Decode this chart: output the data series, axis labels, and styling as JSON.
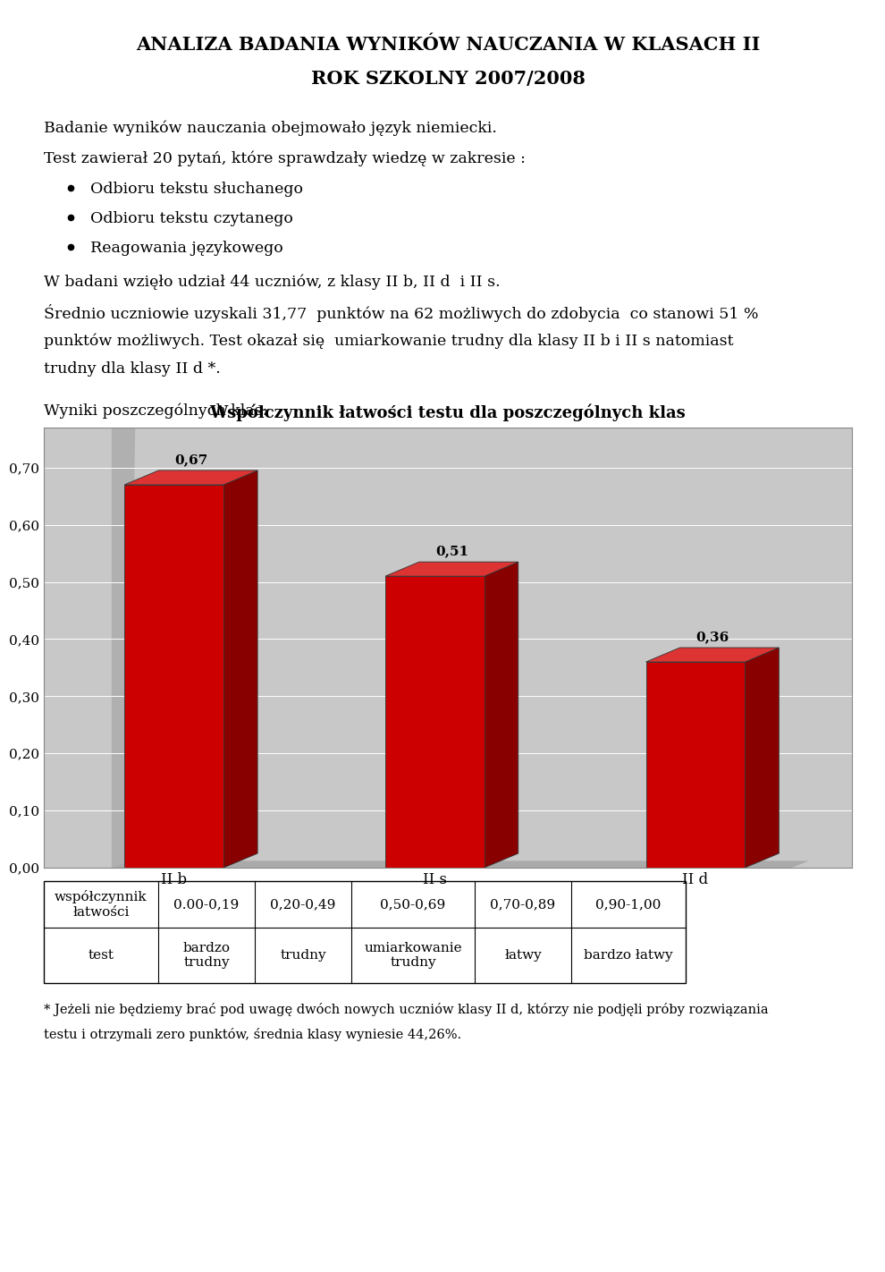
{
  "title_line1": "ANALIZA BADANIA WYNIKÓW NAUCZANIA W KLASACH II",
  "title_line2": "ROK SZKOLNY 2007/2008",
  "para1": "Badanie wyników nauczania obejmowało język niemiecki.",
  "para2": "Test zawierał 20 pytań, które sprawdzały wiedzę w zakresie :",
  "bullets": [
    "Odbioru tekstu słuchanego",
    "Odbioru tekstu czytanego",
    "Reagowania językowego"
  ],
  "para3": "W badani wzięło udział 44 uczniów, z klasy II b, II d  i II s.",
  "para4a": "Średnio uczniowie uzyskali 31,77  punktów na 62 możliwych do zdobycia  co stanowi 51 %",
  "para4b": "punktów możliwych. Test okazał się  umiarkowanie trudny dla klasy II b i II s natomiast",
  "para4c": "trudny dla klasy II d *.",
  "wyniki_text": "Wyniki poszczególnych klas:",
  "chart_title": "Współczynnik łatwości testu dla poszczególnych klas",
  "categories": [
    "II b",
    "II s",
    "II d"
  ],
  "values": [
    0.67,
    0.51,
    0.36
  ],
  "bar_color_face": "#cc0000",
  "bar_color_top": "#dd3333",
  "bar_color_side": "#880000",
  "chart_bg": "#c8c8c8",
  "chart_wall": "#b8b8b8",
  "yticks": [
    0.0,
    0.1,
    0.2,
    0.3,
    0.4,
    0.5,
    0.6,
    0.7
  ],
  "ytick_labels": [
    "0,00",
    "0,10",
    "0,20",
    "0,30",
    "0,40",
    "0,50",
    "0,60",
    "0,70"
  ],
  "ylim_max": 0.77,
  "table_header_col0": "współczynnik\nłatwości",
  "table_header_cols": [
    "0.00-0,19",
    "0,20-0,49",
    "0,50-0,69",
    "0,70-0,89",
    "0,90-1,00"
  ],
  "table_row_col0": "test",
  "table_row_cols": [
    "bardzo\ntrudny",
    "trudny",
    "umiarkowanie\ntrudny",
    "łatwy",
    "bardzo łatwy"
  ],
  "footnote_line1": "* Jeżeli nie będziemy brać pod uwagę dwóch nowych uczniów klasy II d, którzy nie podjęli próby rozwiązania",
  "footnote_line2": "testu i otrzymali zero punktów, średnia klasy wyniesie 44,26%."
}
